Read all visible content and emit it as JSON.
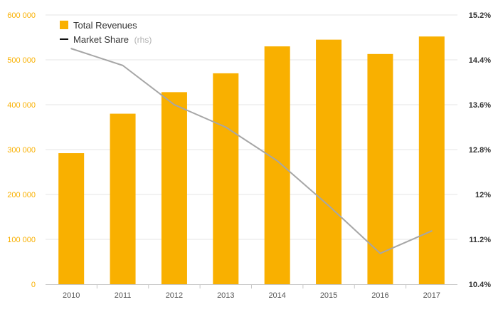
{
  "chart_data": {
    "type": "bar",
    "categories": [
      "2010",
      "2011",
      "2012",
      "2013",
      "2014",
      "2015",
      "2016",
      "2017"
    ],
    "series": [
      {
        "name": "Total Revenues",
        "type": "bar",
        "axis": "left",
        "color": "#f9b000",
        "values": [
          292000,
          380000,
          428000,
          470000,
          530000,
          545000,
          513000,
          552000
        ]
      },
      {
        "name": "Market Share",
        "type": "line",
        "axis": "right",
        "color": "#a6a6a6",
        "values": [
          14.6,
          14.3,
          13.6,
          13.2,
          12.6,
          11.8,
          10.95,
          11.35
        ]
      }
    ],
    "y_left": {
      "ylim": [
        0,
        600000
      ],
      "ticks": [
        0,
        100000,
        200000,
        300000,
        400000,
        500000,
        600000
      ],
      "tick_labels": [
        "0",
        "100 000",
        "200 000",
        "300 000",
        "400 000",
        "500 000",
        "600 000"
      ],
      "color": "#f9b000"
    },
    "y_right": {
      "ylim": [
        10.4,
        15.2
      ],
      "ticks": [
        10.4,
        11.2,
        12,
        12.8,
        13.6,
        14.4,
        15.2
      ],
      "tick_labels": [
        "10.4%",
        "11.2%",
        "12%",
        "12.8%",
        "13.6%",
        "14.4%",
        "15.2%"
      ],
      "color": "#333333"
    },
    "grid": true,
    "legend": {
      "position": "top-left",
      "items": [
        {
          "label": "Total Revenues",
          "symbol": "square",
          "color": "#f9b000"
        },
        {
          "label": "Market Share",
          "note": "(rhs)",
          "symbol": "line",
          "color": "#111111"
        }
      ]
    }
  }
}
